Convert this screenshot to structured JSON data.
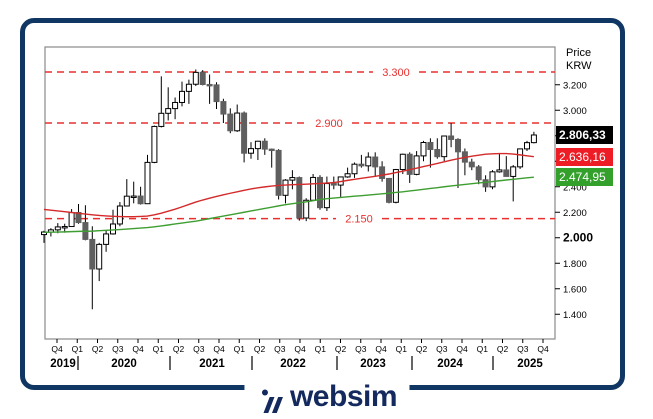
{
  "logo": {
    "wordmark": "websim"
  },
  "colors": {
    "frame_border": "#103763",
    "logo_navy": "#142a5e",
    "plot_border": "#8a8a8a",
    "dashed_level_red": "#e8302e",
    "ma_red": "#d42a2a",
    "ma_green": "#3f9e32",
    "candle_down_fill": "#5f5f5f",
    "candle_up_fill": "#ffffff",
    "candle_outline": "#000000",
    "tag_close_bg": "#000000",
    "tag_red_bg": "#ee1c25",
    "tag_green_bg": "#33a02c"
  },
  "chart_data": {
    "type": "candlestick",
    "price_axis": {
      "title_line1": "Price",
      "title_line2": "KRW",
      "ticks": [
        "3.200",
        "3.000",
        "2.800",
        "2.600",
        "2.400",
        "2.200",
        "2.000",
        "1.800",
        "1.600",
        "1.400"
      ],
      "bold_tick": "2.000",
      "ylim": [
        1.21,
        3.49
      ]
    },
    "x_axis": {
      "quarters": [
        "Q4",
        "Q1",
        "Q2",
        "Q3",
        "Q4",
        "Q1",
        "Q2",
        "Q3",
        "Q4",
        "Q1",
        "Q2",
        "Q3",
        "Q4",
        "Q1",
        "Q2",
        "Q3",
        "Q4",
        "Q1",
        "Q2",
        "Q3",
        "Q4",
        "Q1",
        "Q2",
        "Q3",
        "Q4"
      ],
      "years": [
        "2019",
        "2020",
        "2021",
        "2022",
        "2023",
        "2024",
        "2025"
      ]
    },
    "hlines": [
      {
        "value": 3.3,
        "label": "3.300"
      },
      {
        "value": 2.9,
        "label": "2.900"
      },
      {
        "value": 2.15,
        "label": "2.150"
      }
    ],
    "price_tags": {
      "close": {
        "label": "2.806,33",
        "value": 2.80633
      },
      "ma_red": {
        "label": "2.636,16",
        "value": 2.63616
      },
      "ma_green": {
        "label": "2.474,95",
        "value": 2.47495
      }
    },
    "candles_format": "[open, high, low, close] in thousands KRW, monthly Aug-2019 .. Jul-2025",
    "candles": [
      [
        2.025,
        2.055,
        1.96,
        2.045
      ],
      [
        2.045,
        2.075,
        2.01,
        2.062
      ],
      [
        2.062,
        2.115,
        2.035,
        2.085
      ],
      [
        2.085,
        2.11,
        2.04,
        2.088
      ],
      [
        2.088,
        2.225,
        2.085,
        2.198
      ],
      [
        2.198,
        2.265,
        2.11,
        2.119
      ],
      [
        2.119,
        2.255,
        1.98,
        1.987
      ],
      [
        1.987,
        2.09,
        1.439,
        1.755
      ],
      [
        1.755,
        1.96,
        1.66,
        1.948
      ],
      [
        1.948,
        2.055,
        1.89,
        2.03
      ],
      [
        2.03,
        2.22,
        2.025,
        2.108
      ],
      [
        2.108,
        2.28,
        2.09,
        2.249
      ],
      [
        2.249,
        2.46,
        2.245,
        2.326
      ],
      [
        2.326,
        2.44,
        2.27,
        2.327
      ],
      [
        2.327,
        2.4,
        2.26,
        2.267
      ],
      [
        2.267,
        2.65,
        2.265,
        2.591
      ],
      [
        2.591,
        2.88,
        2.585,
        2.873
      ],
      [
        2.873,
        3.266,
        2.865,
        2.976
      ],
      [
        2.976,
        3.18,
        2.92,
        3.013
      ],
      [
        3.013,
        3.1,
        2.93,
        3.061
      ],
      [
        3.061,
        3.225,
        3.03,
        3.148
      ],
      [
        3.148,
        3.24,
        3.05,
        3.204
      ],
      [
        3.204,
        3.32,
        3.19,
        3.297
      ],
      [
        3.297,
        3.315,
        3.195,
        3.202
      ],
      [
        3.202,
        3.28,
        3.05,
        3.199
      ],
      [
        3.199,
        3.22,
        3.01,
        3.068
      ],
      [
        3.068,
        3.09,
        2.9,
        2.97
      ],
      [
        2.97,
        3.015,
        2.82,
        2.839
      ],
      [
        2.839,
        3.045,
        2.83,
        2.978
      ],
      [
        2.978,
        2.99,
        2.591,
        2.663
      ],
      [
        2.663,
        2.75,
        2.62,
        2.699
      ],
      [
        2.699,
        2.76,
        2.61,
        2.757
      ],
      [
        2.757,
        2.78,
        2.65,
        2.695
      ],
      [
        2.695,
        2.7,
        2.55,
        2.685
      ],
      [
        2.685,
        2.695,
        2.3,
        2.333
      ],
      [
        2.333,
        2.46,
        2.27,
        2.452
      ],
      [
        2.452,
        2.53,
        2.38,
        2.472
      ],
      [
        2.472,
        2.48,
        2.134,
        2.155
      ],
      [
        2.155,
        2.31,
        2.13,
        2.294
      ],
      [
        2.294,
        2.5,
        2.29,
        2.473
      ],
      [
        2.473,
        2.49,
        2.22,
        2.236
      ],
      [
        2.236,
        2.48,
        2.21,
        2.425
      ],
      [
        2.425,
        2.48,
        2.38,
        2.413
      ],
      [
        2.413,
        2.48,
        2.32,
        2.477
      ],
      [
        2.477,
        2.55,
        2.47,
        2.502
      ],
      [
        2.502,
        2.59,
        2.47,
        2.577
      ],
      [
        2.577,
        2.65,
        2.55,
        2.564
      ],
      [
        2.564,
        2.67,
        2.52,
        2.633
      ],
      [
        2.633,
        2.67,
        2.48,
        2.556
      ],
      [
        2.556,
        2.6,
        2.44,
        2.465
      ],
      [
        2.465,
        2.47,
        2.27,
        2.278
      ],
      [
        2.278,
        2.54,
        2.27,
        2.535
      ],
      [
        2.535,
        2.66,
        2.5,
        2.655
      ],
      [
        2.655,
        2.67,
        2.43,
        2.497
      ],
      [
        2.497,
        2.68,
        2.49,
        2.642
      ],
      [
        2.642,
        2.76,
        2.6,
        2.747
      ],
      [
        2.747,
        2.78,
        2.55,
        2.692
      ],
      [
        2.692,
        2.78,
        2.62,
        2.636
      ],
      [
        2.636,
        2.8,
        2.6,
        2.798
      ],
      [
        2.798,
        2.9,
        2.71,
        2.771
      ],
      [
        2.771,
        2.78,
        2.39,
        2.674
      ],
      [
        2.674,
        2.7,
        2.49,
        2.593
      ],
      [
        2.593,
        2.62,
        2.53,
        2.556
      ],
      [
        2.556,
        2.57,
        2.42,
        2.455
      ],
      [
        2.455,
        2.49,
        2.36,
        2.399
      ],
      [
        2.399,
        2.53,
        2.38,
        2.517
      ],
      [
        2.517,
        2.66,
        2.51,
        2.532
      ],
      [
        2.532,
        2.64,
        2.48,
        2.481
      ],
      [
        2.481,
        2.57,
        2.285,
        2.556
      ],
      [
        2.556,
        2.7,
        2.54,
        2.697
      ],
      [
        2.697,
        2.76,
        2.68,
        2.746
      ],
      [
        2.746,
        2.831,
        2.74,
        2.806
      ]
    ],
    "ma_red_series": [
      2.222,
      2.216,
      2.21,
      2.204,
      2.198,
      2.192,
      2.186,
      2.18,
      2.175,
      2.171,
      2.168,
      2.166,
      2.165,
      2.165,
      2.167,
      2.17,
      2.18,
      2.193,
      2.208,
      2.224,
      2.242,
      2.261,
      2.28,
      2.296,
      2.31,
      2.324,
      2.337,
      2.349,
      2.36,
      2.372,
      2.383,
      2.392,
      2.399,
      2.405,
      2.41,
      2.413,
      2.416,
      2.418,
      2.42,
      2.423,
      2.426,
      2.429,
      2.433,
      2.441,
      2.45,
      2.458,
      2.466,
      2.474,
      2.482,
      2.491,
      2.5,
      2.511,
      2.522,
      2.534,
      2.546,
      2.558,
      2.57,
      2.583,
      2.596,
      2.608,
      2.62,
      2.63,
      2.64,
      2.648,
      2.655,
      2.658,
      2.66,
      2.66,
      2.656,
      2.65,
      2.643,
      2.636
    ],
    "ma_green_series": [
      2.043,
      2.044,
      2.045,
      2.046,
      2.048,
      2.05,
      2.051,
      2.052,
      2.055,
      2.058,
      2.061,
      2.064,
      2.068,
      2.072,
      2.076,
      2.08,
      2.086,
      2.093,
      2.1,
      2.108,
      2.115,
      2.123,
      2.13,
      2.14,
      2.15,
      2.16,
      2.17,
      2.18,
      2.19,
      2.2,
      2.21,
      2.22,
      2.23,
      2.24,
      2.25,
      2.259,
      2.267,
      2.275,
      2.282,
      2.291,
      2.3,
      2.306,
      2.311,
      2.316,
      2.321,
      2.326,
      2.33,
      2.335,
      2.34,
      2.345,
      2.35,
      2.355,
      2.36,
      2.367,
      2.373,
      2.38,
      2.387,
      2.393,
      2.4,
      2.406,
      2.412,
      2.418,
      2.424,
      2.43,
      2.435,
      2.441,
      2.447,
      2.453,
      2.458,
      2.464,
      2.47,
      2.475
    ]
  }
}
